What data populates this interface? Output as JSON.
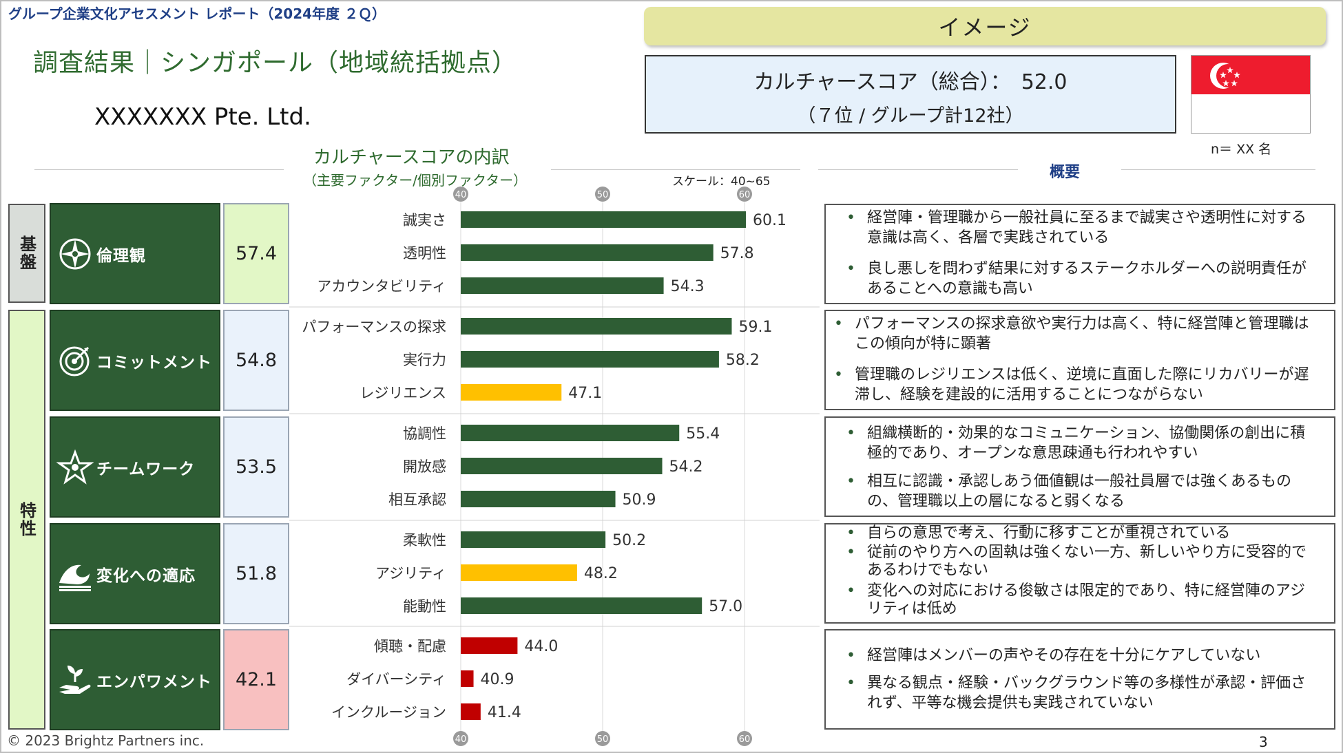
{
  "header": {
    "report_title": "グループ企業文化アセスメント レポート（2024年度 ２Ｑ）",
    "image_banner": "イメージ",
    "section_title": "調査結果｜シンガポール（地域統括拠点）",
    "company": "XXXXXXX Pte. Ltd."
  },
  "score_box": {
    "line1": "カルチャースコア（総合）：　52.0",
    "line2": "（７位 / グループ計12社）"
  },
  "respondents": "n＝ XX 名",
  "chart_heading": "カルチャースコアの内訳",
  "chart_subheading": "（主要ファクター/個別ファクター）",
  "scale_label": "スケール：40~65",
  "summary_heading": "概要",
  "categories": [
    {
      "label": "基盤"
    },
    {
      "label": "特性"
    }
  ],
  "colors": {
    "factor_bg": "#2e5d34",
    "bar_green": "#2e5d34",
    "bar_yellow": "#ffc000",
    "bar_red": "#c00000",
    "score_green": "#e2f7c6",
    "score_blue": "#eaf2fb",
    "score_red": "#f8c0c0"
  },
  "factors": [
    {
      "name": "倫理観",
      "icon": "compass-icon",
      "score": "57.4",
      "score_tone": "green",
      "summary": [
        "経営陣・管理職から一般社員に至るまで誠実さや透明性に対する意識は高く、各層で実践されている",
        "良し悪しを問わず結果に対するステークホルダーへの説明責任があることへの意識も高い"
      ]
    },
    {
      "name": "コミットメント",
      "icon": "target-icon",
      "score": "54.8",
      "score_tone": "blue",
      "summary": [
        "パフォーマンスの探求意欲や実行力は高く、特に経営陣と管理職はこの傾向が特に顕著",
        "管理職のレジリエンスは低く、逆境に直面した際にリカバリーが遅滞し、経験を建設的に活用することにつながらない"
      ]
    },
    {
      "name": "チームワーク",
      "icon": "team-star-icon",
      "score": "53.5",
      "score_tone": "blue",
      "summary": [
        "組織横断的・効果的なコミュニケーション、協働関係の創出に積極的であり、オープンな意思疎通も行われやすい",
        "相互に認識・承認しあう価値観は一般社員層では強くあるものの、管理職以上の層になると弱くなる"
      ]
    },
    {
      "name": "変化への適応",
      "icon": "wave-icon",
      "score": "51.8",
      "score_tone": "blue",
      "summary": [
        "自らの意思で考え、行動に移すことが重視されている",
        "従前のやり方への固執は強くない一方、新しいやり方に受容的であるわけでもない",
        "変化への対応における俊敏さは限定的であり、特に経営陣のアジリティは低め"
      ]
    },
    {
      "name": "エンパワメント",
      "icon": "hand-sprout-icon",
      "score": "42.1",
      "score_tone": "red",
      "summary": [
        "経営陣はメンバーの声やその存在を十分にケアしていない",
        "異なる観点・経験・バックグラウンド等の多様性が承認・評価されず、平等な機会提供も実践されていない"
      ]
    }
  ],
  "chart_data": {
    "type": "bar",
    "orientation": "horizontal",
    "xlim": [
      40,
      65
    ],
    "axis_ticks": [
      "40",
      "50",
      "60"
    ],
    "categories": [
      "誠実さ",
      "透明性",
      "アカウンタビリティ",
      "パフォーマンスの探求",
      "実行力",
      "レジリエンス",
      "協調性",
      "開放感",
      "相互承認",
      "柔軟性",
      "アジリティ",
      "能動性",
      "傾聴・配慮",
      "ダイバーシティ",
      "インクルージョン"
    ],
    "values": [
      60.1,
      57.8,
      54.3,
      59.1,
      58.2,
      47.1,
      55.4,
      54.2,
      50.9,
      50.2,
      48.2,
      57.0,
      44.0,
      40.9,
      41.4
    ],
    "value_labels": [
      "60.1",
      "57.8",
      "54.3",
      "59.1",
      "58.2",
      "47.1",
      "55.4",
      "54.2",
      "50.9",
      "50.2",
      "48.2",
      "57.0",
      "44.0",
      "40.9",
      "41.4"
    ],
    "bar_colors": [
      "green",
      "green",
      "green",
      "green",
      "green",
      "yellow",
      "green",
      "green",
      "green",
      "green",
      "yellow",
      "green",
      "red",
      "red",
      "red"
    ]
  },
  "footer": {
    "copyright": "© 2023 Brightz Partners inc.",
    "page": "3"
  }
}
